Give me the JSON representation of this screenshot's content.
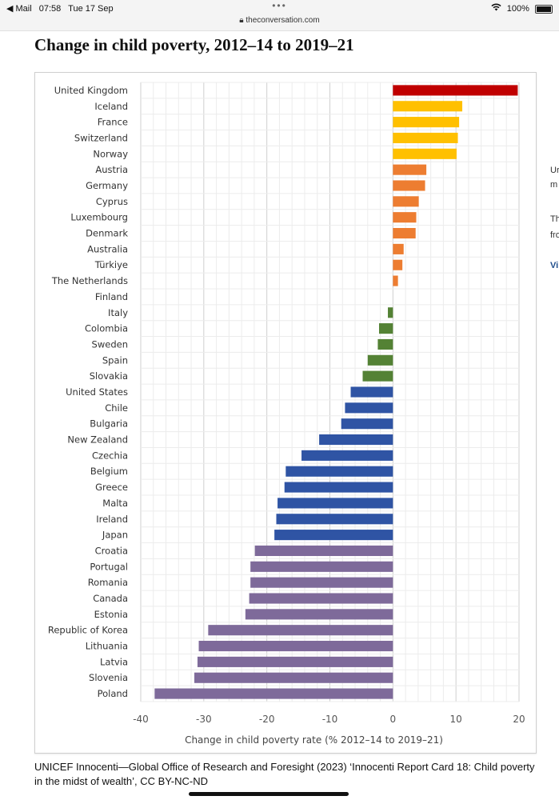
{
  "status_bar": {
    "back_label": "◀ Mail",
    "time": "07:58",
    "date": "Tue 17 Sep",
    "dots": "•••",
    "url": "theconversation.com",
    "battery": "100%"
  },
  "page": {
    "title": "Change in child poverty, 2012–14 to 2019–21",
    "caption": "UNICEF Innocenti—Global Office of Research and Foresight (2023) ‘Innocenti Report Card 18: Child poverty in the midst of wealth’, CC BY-NC-ND",
    "side_fragments": [
      "Ur",
      "m",
      "Th",
      "fro",
      "Vi"
    ]
  },
  "chart_data": {
    "type": "bar",
    "orientation": "horizontal",
    "xlabel": "Change in child poverty rate (% 2012–14 to 2019–21)",
    "xlim": [
      -40,
      20
    ],
    "xticks": [
      -40,
      -30,
      -20,
      -10,
      0,
      10,
      20
    ],
    "grid": true,
    "categories": [
      "United Kingdom",
      "Iceland",
      "France",
      "Switzerland",
      "Norway",
      "Austria",
      "Germany",
      "Cyprus",
      "Luxembourg",
      "Denmark",
      "Australia",
      "Türkiye",
      "The Netherlands",
      "Finland",
      "Italy",
      "Colombia",
      "Sweden",
      "Spain",
      "Slovakia",
      "United States",
      "Chile",
      "Bulgaria",
      "New Zealand",
      "Czechia",
      "Belgium",
      "Greece",
      "Malta",
      "Ireland",
      "Japan",
      "Croatia",
      "Portugal",
      "Romania",
      "Canada",
      "Estonia",
      "Republic of Korea",
      "Lithuania",
      "Latvia",
      "Slovenia",
      "Poland"
    ],
    "values": [
      19.8,
      11,
      10.5,
      10.3,
      10.1,
      5.3,
      5.1,
      4.1,
      3.7,
      3.6,
      1.7,
      1.5,
      0.8,
      0,
      -0.8,
      -2.2,
      -2.4,
      -4.0,
      -4.8,
      -6.7,
      -7.6,
      -8.2,
      -11.7,
      -14.5,
      -17.0,
      -17.2,
      -18.3,
      -18.5,
      -18.8,
      -21.9,
      -22.6,
      -22.6,
      -22.8,
      -23.4,
      -29.3,
      -30.8,
      -31.0,
      -31.5,
      -37.8
    ],
    "groups": [
      0,
      1,
      1,
      1,
      1,
      2,
      2,
      2,
      2,
      2,
      2,
      2,
      2,
      3,
      3,
      3,
      3,
      3,
      3,
      4,
      4,
      4,
      4,
      4,
      4,
      4,
      4,
      4,
      4,
      5,
      5,
      5,
      5,
      5,
      5,
      5,
      5,
      5,
      5
    ],
    "group_colors": [
      "#c00000",
      "#ffc000",
      "#ed7d31",
      "#548235",
      "#2f54a4",
      "#7e6a9a"
    ]
  }
}
